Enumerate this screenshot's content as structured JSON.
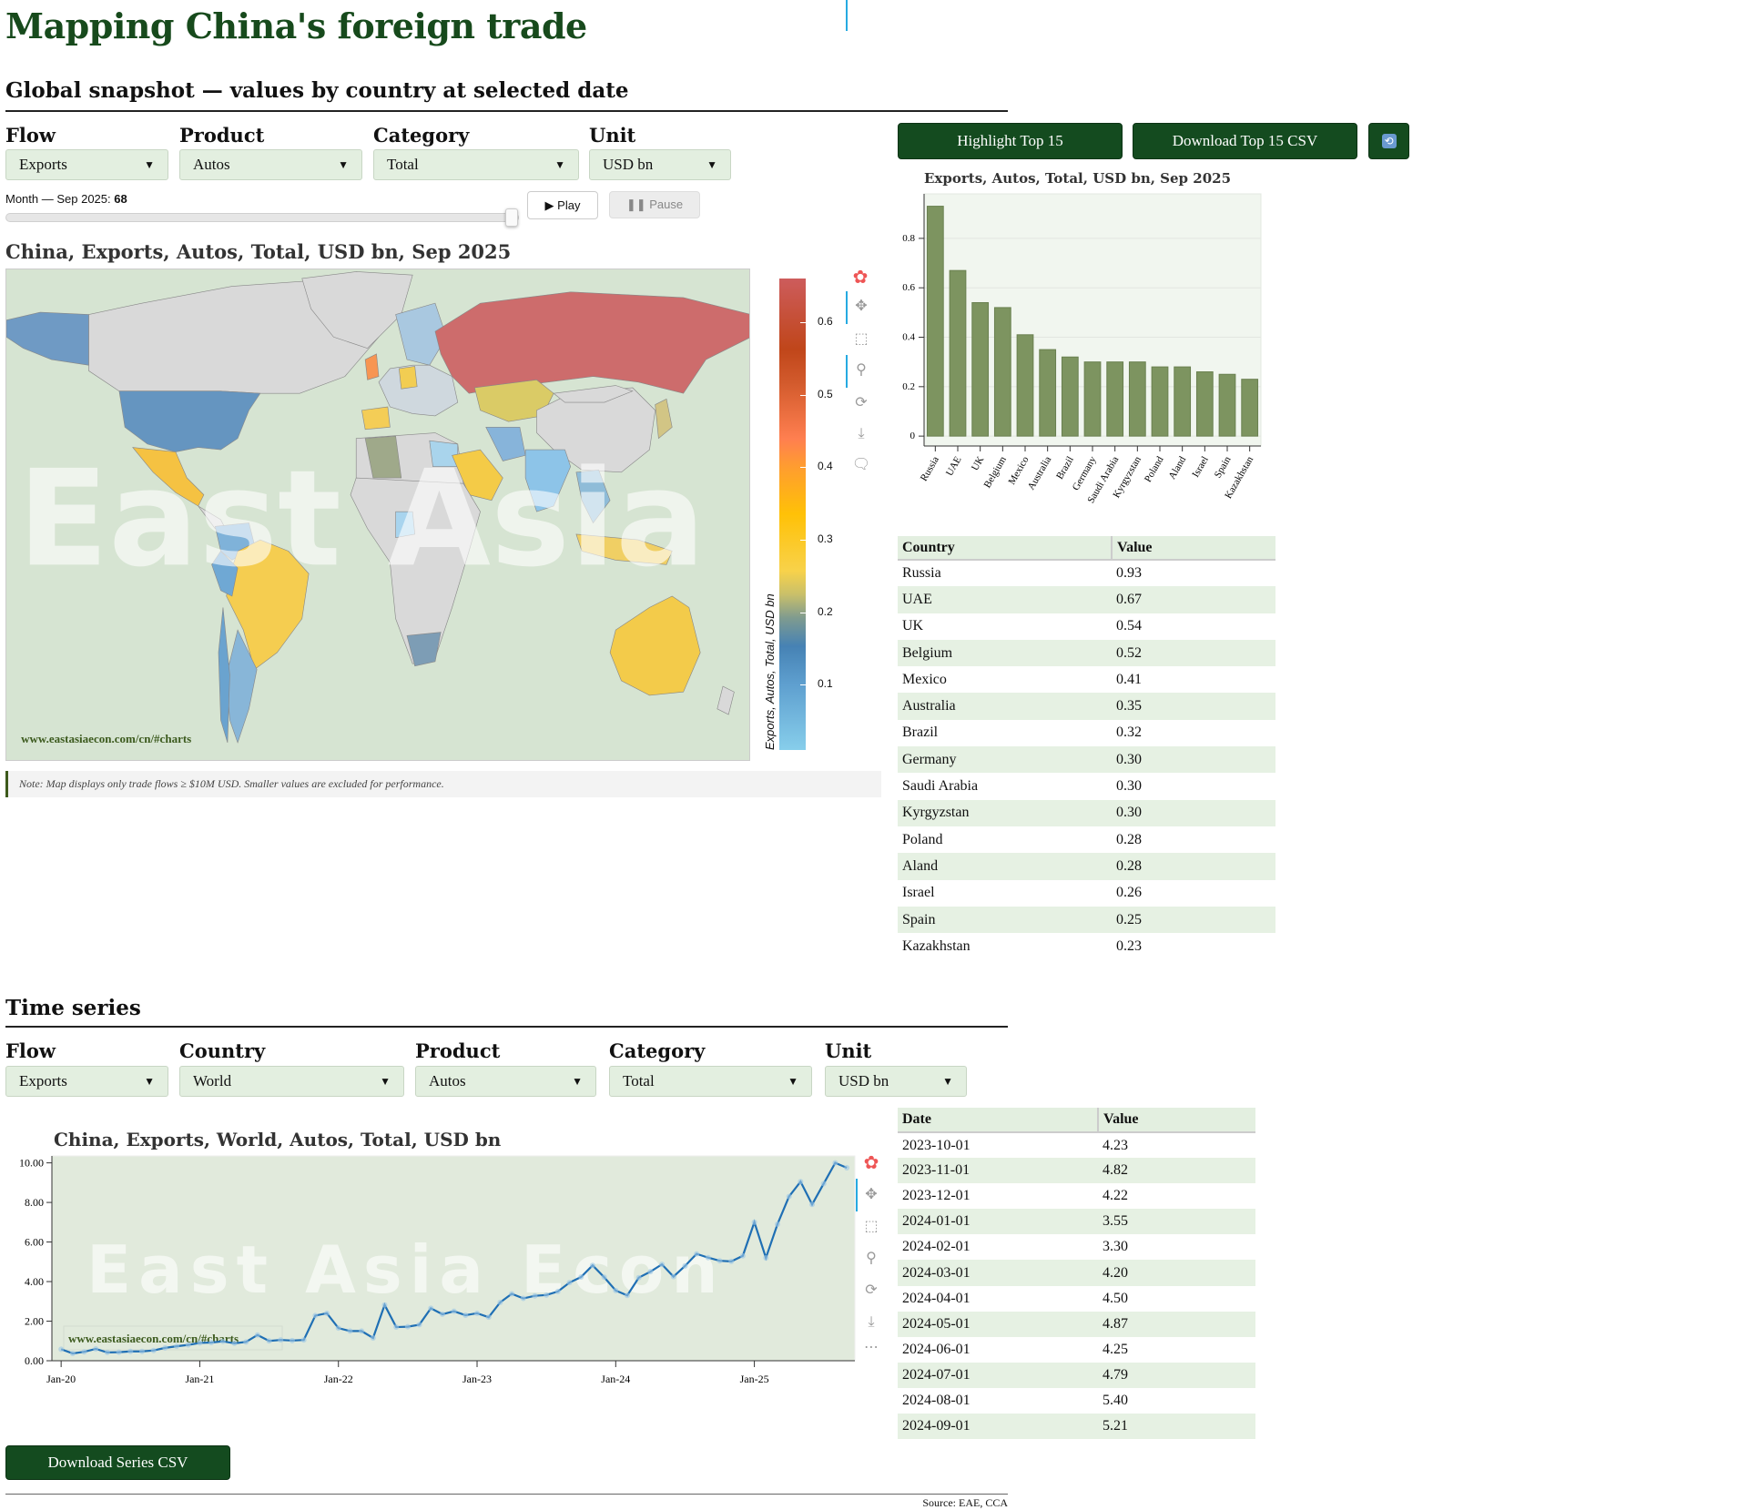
{
  "page": {
    "title": "Mapping China's foreign trade"
  },
  "snapshot": {
    "heading": "Global snapshot — values by country at selected date",
    "filters": [
      {
        "label": "Flow",
        "value": "Exports"
      },
      {
        "label": "Product",
        "value": "Autos"
      },
      {
        "label": "Category",
        "value": "Total"
      },
      {
        "label": "Unit",
        "value": "USD bn"
      }
    ],
    "slider": {
      "label": "Month — Sep 2025: ",
      "value": "68",
      "fraction": 1.0
    },
    "play_label": "▶ Play",
    "pause_label": "❚❚ Pause",
    "map_title": "China, Exports, Autos, Total, USD bn, Sep 2025",
    "watermark": "East Asia Econ",
    "map_url": "www.eastasiaecon.com/cn/#charts",
    "colorbar": {
      "title": "Exports, Autos, Total, USD bn",
      "ticks": [
        "0.1",
        "0.2",
        "0.3",
        "0.4",
        "0.5",
        "0.6"
      ],
      "range": [
        0.01,
        0.66
      ]
    },
    "note": "Note: Map displays only trade flows ≥ $10M USD. Smaller values are excluded for performance.",
    "highlight_label": "Highlight Top 15",
    "download_label": "Download Top 15 CSV",
    "refresh_icon": "refresh-icon",
    "table": {
      "headers": [
        "Country",
        "Value"
      ],
      "rows": [
        [
          "Russia",
          "0.93"
        ],
        [
          "UAE",
          "0.67"
        ],
        [
          "UK",
          "0.54"
        ],
        [
          "Belgium",
          "0.52"
        ],
        [
          "Mexico",
          "0.41"
        ],
        [
          "Australia",
          "0.35"
        ],
        [
          "Brazil",
          "0.32"
        ],
        [
          "Germany",
          "0.30"
        ],
        [
          "Saudi Arabia",
          "0.30"
        ],
        [
          "Kyrgyzstan",
          "0.30"
        ],
        [
          "Poland",
          "0.28"
        ],
        [
          "Aland",
          "0.28"
        ],
        [
          "Israel",
          "0.26"
        ],
        [
          "Spain",
          "0.25"
        ],
        [
          "Kazakhstan",
          "0.23"
        ]
      ]
    }
  },
  "timeseries": {
    "heading": "Time series",
    "filters": [
      {
        "label": "Flow",
        "value": "Exports"
      },
      {
        "label": "Country",
        "value": "World"
      },
      {
        "label": "Product",
        "value": "Autos"
      },
      {
        "label": "Category",
        "value": "Total"
      },
      {
        "label": "Unit",
        "value": "USD bn"
      }
    ],
    "watermark": "East Asia Econ",
    "url": "www.eastasiaecon.com/cn/#charts",
    "download_label": "Download Series CSV",
    "table": {
      "headers": [
        "Date",
        "Value"
      ],
      "rows": [
        [
          "2023-10-01",
          "4.23"
        ],
        [
          "2023-11-01",
          "4.82"
        ],
        [
          "2023-12-01",
          "4.22"
        ],
        [
          "2024-01-01",
          "3.55"
        ],
        [
          "2024-02-01",
          "3.30"
        ],
        [
          "2024-03-01",
          "4.20"
        ],
        [
          "2024-04-01",
          "4.50"
        ],
        [
          "2024-05-01",
          "4.87"
        ],
        [
          "2024-06-01",
          "4.25"
        ],
        [
          "2024-07-01",
          "4.79"
        ],
        [
          "2024-08-01",
          "5.40"
        ],
        [
          "2024-09-01",
          "5.21"
        ]
      ]
    }
  },
  "footer": {
    "source": "Source: EAE, CCA"
  },
  "colors": {
    "brand": "#144b1f",
    "bar": "#7d9460",
    "line": "#1f6fb4",
    "map_ocean": "#d6e4d2",
    "land_default": "#d9d9d9"
  },
  "chart_data": [
    {
      "type": "bar",
      "title": "Exports, Autos, Total, USD bn, Sep 2025",
      "categories": [
        "Russia",
        "UAE",
        "UK",
        "Belgium",
        "Mexico",
        "Australia",
        "Brazil",
        "Germany",
        "Saudi Arabia",
        "Kyrgyzstan",
        "Poland",
        "Aland",
        "Israel",
        "Spain",
        "Kazakhstan"
      ],
      "values": [
        0.93,
        0.67,
        0.54,
        0.52,
        0.41,
        0.35,
        0.32,
        0.3,
        0.3,
        0.3,
        0.28,
        0.28,
        0.26,
        0.25,
        0.23
      ],
      "yticks": [
        "0",
        "0.2",
        "0.4",
        "0.6",
        "0.8"
      ],
      "ylim": [
        -0.04,
        0.98
      ],
      "grid": true
    },
    {
      "type": "line",
      "title": "China, Exports, World, Autos, Total, USD bn",
      "x_start": "2020-01",
      "x_step": "month",
      "values": [
        0.58,
        0.37,
        0.45,
        0.6,
        0.42,
        0.43,
        0.47,
        0.47,
        0.52,
        0.65,
        0.73,
        0.8,
        0.9,
        0.92,
        0.98,
        0.88,
        0.95,
        1.3,
        1.0,
        1.05,
        1.02,
        1.05,
        2.28,
        2.4,
        1.65,
        1.5,
        1.5,
        1.15,
        2.82,
        1.7,
        1.72,
        1.82,
        2.65,
        2.35,
        2.5,
        2.3,
        2.4,
        2.2,
        2.95,
        3.38,
        3.15,
        3.28,
        3.32,
        3.5,
        3.95,
        4.23,
        4.82,
        4.22,
        3.55,
        3.3,
        4.2,
        4.5,
        4.87,
        4.25,
        4.79,
        5.4,
        5.21,
        5.05,
        5.02,
        5.3,
        7.0,
        5.2,
        6.9,
        8.3,
        9.05,
        7.9,
        8.95,
        10.0,
        9.75
      ],
      "xticks": [
        "Jan-20",
        "Jan-21",
        "Jan-22",
        "Jan-23",
        "Jan-24",
        "Jan-25"
      ],
      "yticks": [
        "0.00",
        "2.00",
        "4.00",
        "6.00",
        "8.00",
        "10.00"
      ],
      "ylim": [
        0,
        10.35
      ],
      "xlim_months": [
        -0.8,
        68.7
      ],
      "grid": false
    }
  ]
}
